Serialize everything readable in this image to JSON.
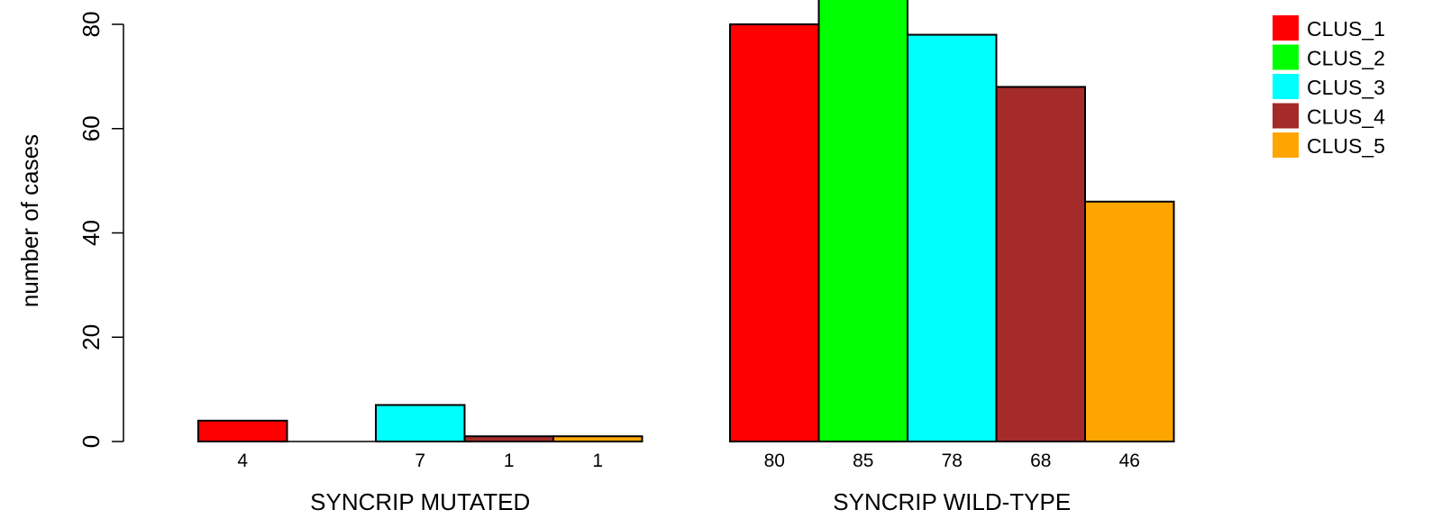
{
  "chart_data": {
    "type": "bar",
    "ylabel": "number of cases",
    "ylim": [
      0,
      85
    ],
    "yticks": [
      0,
      20,
      40,
      60,
      80
    ],
    "groups": [
      "SYNCRIP MUTATED",
      "SYNCRIP WILD-TYPE"
    ],
    "series": [
      {
        "name": "CLUS_1",
        "color": "#ff0000",
        "values": [
          4,
          80
        ]
      },
      {
        "name": "CLUS_2",
        "color": "#00ff00",
        "values": [
          0,
          85
        ]
      },
      {
        "name": "CLUS_3",
        "color": "#00ffff",
        "values": [
          7,
          78
        ]
      },
      {
        "name": "CLUS_4",
        "color": "#a52a2a",
        "values": [
          1,
          68
        ]
      },
      {
        "name": "CLUS_5",
        "color": "#ffa500",
        "values": [
          1,
          46
        ]
      }
    ],
    "bar_labels": [
      [
        "4",
        "",
        "7",
        "1",
        "1"
      ],
      [
        "80",
        "85",
        "78",
        "68",
        "46"
      ]
    ],
    "legend_position": "top-right"
  }
}
